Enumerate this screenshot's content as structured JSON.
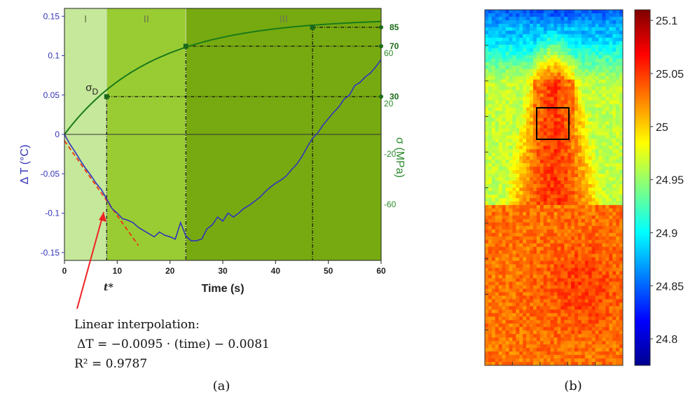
{
  "chart_data": [
    {
      "type": "line",
      "panel_label": "(a)",
      "xlabel": "Time (s)",
      "ylabel_left": "Δ T (°C)",
      "ylabel_right": "σ (MPa)",
      "xlim": [
        0,
        60
      ],
      "ylim_left": [
        -0.16,
        0.16
      ],
      "ylim_right": [
        -100,
        100
      ],
      "x_ticks": [
        0,
        10,
        20,
        30,
        40,
        50,
        60
      ],
      "y_ticks_left": [
        -0.15,
        -0.1,
        -0.05,
        0,
        0.05,
        0.1,
        0.15
      ],
      "y_ticks_right": [
        -60,
        -20,
        20,
        60
      ],
      "right_annotated_levels": [
        30,
        70,
        85
      ],
      "regions": [
        {
          "label": "I",
          "x_start": 0,
          "x_end": 8,
          "color": "#c5e89a"
        },
        {
          "label": "II",
          "x_start": 8,
          "x_end": 23,
          "color": "#99cc33"
        },
        {
          "label": "III",
          "x_start": 23,
          "x_end": 60,
          "color": "#77aa11"
        }
      ],
      "annotations": {
        "sigma_d": "σD",
        "t_star": "t*",
        "interp_title": "Linear interpolation:",
        "interp_eq": "ΔT = −0.0095 · (time) − 0.0081",
        "r2": "R² = 0.9787"
      },
      "series": [
        {
          "name": "ΔT",
          "axis": "left",
          "color": "#3333bb",
          "x": [
            0,
            1,
            2,
            3,
            4,
            5,
            6,
            7,
            8,
            9,
            10,
            11,
            12,
            13,
            14,
            15,
            16,
            17,
            18,
            19,
            20,
            21,
            22,
            23,
            24,
            25,
            26,
            27,
            28,
            29,
            30,
            31,
            32,
            33,
            34,
            35,
            36,
            37,
            38,
            39,
            40,
            41,
            42,
            43,
            44,
            45,
            46,
            47,
            48,
            49,
            50,
            51,
            52,
            53,
            54,
            55,
            56,
            57,
            58,
            59,
            60
          ],
          "y": [
            0,
            -0.012,
            -0.022,
            -0.033,
            -0.043,
            -0.052,
            -0.062,
            -0.07,
            -0.082,
            -0.094,
            -0.1,
            -0.107,
            -0.109,
            -0.112,
            -0.118,
            -0.122,
            -0.126,
            -0.13,
            -0.124,
            -0.128,
            -0.13,
            -0.133,
            -0.112,
            -0.129,
            -0.135,
            -0.135,
            -0.133,
            -0.12,
            -0.115,
            -0.105,
            -0.11,
            -0.1,
            -0.105,
            -0.1,
            -0.094,
            -0.09,
            -0.085,
            -0.08,
            -0.073,
            -0.067,
            -0.062,
            -0.058,
            -0.053,
            -0.045,
            -0.038,
            -0.028,
            -0.016,
            -0.005,
            0.002,
            0.012,
            0.02,
            0.028,
            0.035,
            0.045,
            0.05,
            0.062,
            0.066,
            0.073,
            0.078,
            0.086,
            0.095
          ]
        },
        {
          "name": "σ",
          "axis": "right",
          "color": "#1a7a1a",
          "x": [
            0,
            8,
            23,
            47,
            60
          ],
          "y": [
            0,
            30,
            70,
            85,
            92
          ]
        },
        {
          "name": "linear fit",
          "axis": "left",
          "color": "#ee3311",
          "x": [
            0,
            14
          ],
          "y": [
            -0.0081,
            -0.1411
          ]
        }
      ]
    },
    {
      "type": "heatmap",
      "panel_label": "(b)",
      "colorbar_ticks": [
        "25.1",
        "25.05",
        "25",
        "24.95",
        "24.9",
        "24.85",
        "24.8"
      ],
      "colorbar_range": [
        24.775,
        25.11
      ]
    }
  ]
}
